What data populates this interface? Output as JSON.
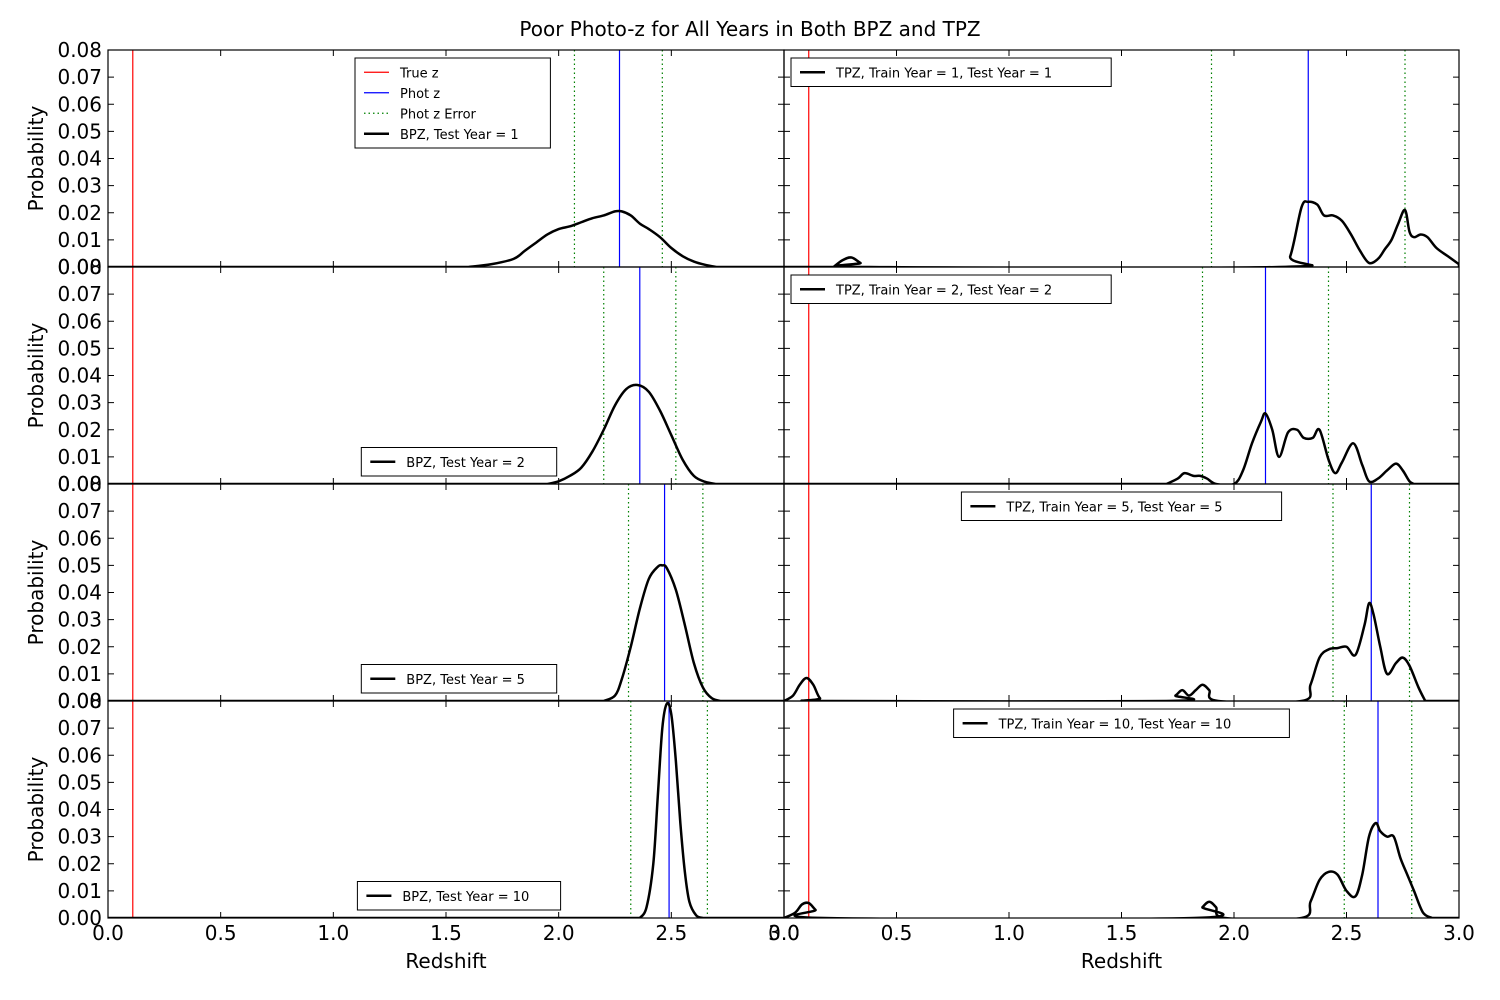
{
  "title": "Poor Photo-z for All Years in Both BPZ and TPZ",
  "colors": {
    "true_z": "#ff0000",
    "phot_z": "#0000ff",
    "phot_z_error": "#008000",
    "pdf": "#000000"
  },
  "chart_data": [
    {
      "type": "line",
      "panel": "left-row-1",
      "xlim": [
        0.0,
        3.0
      ],
      "ylim": [
        0.0,
        0.08
      ],
      "xticks": [
        "0.0",
        "0.5",
        "1.0",
        "1.5",
        "2.0",
        "2.5",
        "3.0"
      ],
      "yticks": [
        "0.00",
        "0.01",
        "0.02",
        "0.03",
        "0.04",
        "0.05",
        "0.06",
        "0.07",
        "0.08"
      ],
      "ylabel": "Probability",
      "xlabel": "",
      "true_z": 0.11,
      "phot_z": 2.27,
      "phot_z_error": [
        2.07,
        2.46
      ],
      "legend_position": "upper-center",
      "legend": [
        "True z",
        "Phot z",
        "Phot z Error",
        "BPZ, Test Year = 1"
      ],
      "series": [
        {
          "name": "BPZ, Test Year = 1",
          "x": [
            1.6,
            1.7,
            1.8,
            1.85,
            1.9,
            1.95,
            2.0,
            2.05,
            2.1,
            2.15,
            2.2,
            2.25,
            2.28,
            2.32,
            2.36,
            2.4,
            2.45,
            2.5,
            2.55,
            2.6,
            2.65,
            2.7
          ],
          "y": [
            0,
            0.001,
            0.003,
            0.006,
            0.009,
            0.012,
            0.014,
            0.015,
            0.0165,
            0.018,
            0.019,
            0.0205,
            0.0205,
            0.019,
            0.016,
            0.014,
            0.011,
            0.007,
            0.004,
            0.002,
            0.0008,
            0
          ]
        }
      ]
    },
    {
      "type": "line",
      "panel": "right-row-1",
      "xlim": [
        0.0,
        3.0
      ],
      "ylim": [
        0.0,
        0.08
      ],
      "xticks": [
        "0.0",
        "0.5",
        "1.0",
        "1.5",
        "2.0",
        "2.5",
        "3.0"
      ],
      "yticks": [],
      "ylabel": "",
      "xlabel": "",
      "true_z": 0.11,
      "phot_z": 2.33,
      "phot_z_error": [
        1.9,
        2.76
      ],
      "legend_position": "upper-left",
      "legend": [
        "TPZ, Train Year = 1, Test Year = 1"
      ],
      "series": [
        {
          "name": "TPZ, Train Year = 1, Test Year = 1",
          "x": [
            0.22,
            0.26,
            0.3,
            0.34,
            0.38,
            2.2,
            2.25,
            2.3,
            2.33,
            2.37,
            2.4,
            2.44,
            2.48,
            2.52,
            2.56,
            2.6,
            2.64,
            2.67,
            2.7,
            2.73,
            2.76,
            2.78,
            2.8,
            2.83,
            2.86,
            2.9,
            2.95,
            3.0
          ],
          "y": [
            0,
            0.0025,
            0.0035,
            0.0015,
            0,
            0,
            0.004,
            0.022,
            0.024,
            0.023,
            0.019,
            0.019,
            0.017,
            0.012,
            0.006,
            0.0015,
            0.003,
            0.0065,
            0.01,
            0.016,
            0.021,
            0.013,
            0.011,
            0.012,
            0.011,
            0.007,
            0.004,
            0.001
          ]
        }
      ]
    },
    {
      "type": "line",
      "panel": "left-row-2",
      "xlim": [
        0.0,
        3.0
      ],
      "ylim": [
        0.0,
        0.08
      ],
      "xticks": [
        "0.0",
        "0.5",
        "1.0",
        "1.5",
        "2.0",
        "2.5",
        "3.0"
      ],
      "yticks": [
        "0.00",
        "0.01",
        "0.02",
        "0.03",
        "0.04",
        "0.05",
        "0.06",
        "0.07",
        "0.08"
      ],
      "ylabel": "Probability",
      "xlabel": "",
      "true_z": 0.11,
      "phot_z": 2.36,
      "phot_z_error": [
        2.2,
        2.52
      ],
      "legend_position": "lower-center",
      "legend": [
        "BPZ, Test Year = 2"
      ],
      "series": [
        {
          "name": "BPZ, Test Year = 2",
          "x": [
            1.95,
            2.0,
            2.05,
            2.1,
            2.15,
            2.2,
            2.25,
            2.3,
            2.35,
            2.4,
            2.45,
            2.5,
            2.55,
            2.6,
            2.65,
            2.7
          ],
          "y": [
            0,
            0.001,
            0.003,
            0.006,
            0.012,
            0.02,
            0.029,
            0.035,
            0.0365,
            0.034,
            0.027,
            0.018,
            0.009,
            0.003,
            0.0008,
            0
          ]
        }
      ]
    },
    {
      "type": "line",
      "panel": "right-row-2",
      "xlim": [
        0.0,
        3.0
      ],
      "ylim": [
        0.0,
        0.08
      ],
      "xticks": [
        "0.0",
        "0.5",
        "1.0",
        "1.5",
        "2.0",
        "2.5",
        "3.0"
      ],
      "yticks": [],
      "ylabel": "",
      "xlabel": "",
      "true_z": 0.11,
      "phot_z": 2.14,
      "phot_z_error": [
        1.86,
        2.42
      ],
      "legend_position": "upper-left",
      "legend": [
        "TPZ, Train Year = 2, Test Year = 2"
      ],
      "series": [
        {
          "name": "TPZ, Train Year = 2, Test Year = 2",
          "x": [
            1.7,
            1.75,
            1.78,
            1.82,
            1.85,
            1.88,
            1.92,
            2.0,
            2.04,
            2.08,
            2.12,
            2.14,
            2.17,
            2.2,
            2.24,
            2.28,
            2.31,
            2.35,
            2.38,
            2.42,
            2.45,
            2.48,
            2.53,
            2.57,
            2.6,
            2.64,
            2.68,
            2.72,
            2.75,
            2.78,
            2.8
          ],
          "y": [
            0,
            0.002,
            0.004,
            0.003,
            0.003,
            0.002,
            0,
            0,
            0.005,
            0.015,
            0.023,
            0.026,
            0.02,
            0.01,
            0.019,
            0.02,
            0.017,
            0.017,
            0.02,
            0.009,
            0.004,
            0.008,
            0.015,
            0.007,
            0.001,
            0.002,
            0.005,
            0.0075,
            0.005,
            0.001,
            0
          ]
        }
      ]
    },
    {
      "type": "line",
      "panel": "left-row-3",
      "xlim": [
        0.0,
        3.0
      ],
      "ylim": [
        0.0,
        0.08
      ],
      "xticks": [
        "0.0",
        "0.5",
        "1.0",
        "1.5",
        "2.0",
        "2.5",
        "3.0"
      ],
      "yticks": [
        "0.00",
        "0.01",
        "0.02",
        "0.03",
        "0.04",
        "0.05",
        "0.06",
        "0.07",
        "0.08"
      ],
      "ylabel": "Probability",
      "xlabel": "",
      "true_z": 0.11,
      "phot_z": 2.47,
      "phot_z_error": [
        2.31,
        2.64
      ],
      "legend_position": "lower-center",
      "legend": [
        "BPZ, Test Year = 5"
      ],
      "series": [
        {
          "name": "BPZ, Test Year = 5",
          "x": [
            2.2,
            2.25,
            2.28,
            2.32,
            2.36,
            2.4,
            2.44,
            2.46,
            2.48,
            2.52,
            2.56,
            2.6,
            2.64,
            2.68,
            2.72
          ],
          "y": [
            0,
            0.002,
            0.008,
            0.02,
            0.034,
            0.045,
            0.0495,
            0.05,
            0.049,
            0.041,
            0.028,
            0.014,
            0.005,
            0.001,
            0
          ]
        }
      ]
    },
    {
      "type": "line",
      "panel": "right-row-3",
      "xlim": [
        0.0,
        3.0
      ],
      "ylim": [
        0.0,
        0.08
      ],
      "xticks": [
        "0.0",
        "0.5",
        "1.0",
        "1.5",
        "2.0",
        "2.5",
        "3.0"
      ],
      "yticks": [],
      "ylabel": "",
      "xlabel": "",
      "true_z": 0.11,
      "phot_z": 2.61,
      "phot_z_error": [
        2.44,
        2.78
      ],
      "legend_position": "upper-center",
      "legend": [
        "TPZ, Train Year = 5, Test Year = 5"
      ],
      "series": [
        {
          "name": "TPZ, Train Year = 5, Test Year = 5",
          "x": [
            0.0,
            0.04,
            0.07,
            0.1,
            0.13,
            0.16,
            0.2,
            1.7,
            1.74,
            1.77,
            1.8,
            1.83,
            1.86,
            1.89,
            1.93,
            2.3,
            2.34,
            2.38,
            2.42,
            2.46,
            2.5,
            2.54,
            2.58,
            2.6,
            2.62,
            2.65,
            2.68,
            2.72,
            2.75,
            2.78,
            2.82,
            2.85
          ],
          "y": [
            0,
            0.002,
            0.006,
            0.0085,
            0.006,
            0.001,
            0,
            0,
            0.002,
            0.004,
            0.002,
            0.004,
            0.006,
            0.004,
            0,
            0,
            0.006,
            0.016,
            0.019,
            0.0195,
            0.02,
            0.017,
            0.028,
            0.036,
            0.032,
            0.02,
            0.01,
            0.014,
            0.016,
            0.013,
            0.005,
            0
          ]
        }
      ]
    },
    {
      "type": "line",
      "panel": "left-row-4",
      "xlim": [
        0.0,
        3.0
      ],
      "ylim": [
        0.0,
        0.08
      ],
      "xticks": [
        "0.0",
        "0.5",
        "1.0",
        "1.5",
        "2.0",
        "2.5",
        "3.0"
      ],
      "yticks": [
        "0.00",
        "0.01",
        "0.02",
        "0.03",
        "0.04",
        "0.05",
        "0.06",
        "0.07",
        "0.08"
      ],
      "ylabel": "Probability",
      "xlabel": "Redshift",
      "true_z": 0.11,
      "phot_z": 2.49,
      "phot_z_error": [
        2.32,
        2.66
      ],
      "legend_position": "lower-center",
      "legend": [
        "BPZ, Test Year = 10"
      ],
      "series": [
        {
          "name": "BPZ, Test Year = 10",
          "x": [
            2.36,
            2.39,
            2.42,
            2.44,
            2.46,
            2.48,
            2.5,
            2.52,
            2.54,
            2.56,
            2.58,
            2.61,
            2.64
          ],
          "y": [
            0,
            0.004,
            0.02,
            0.045,
            0.07,
            0.079,
            0.075,
            0.058,
            0.035,
            0.017,
            0.006,
            0.001,
            0
          ]
        }
      ]
    },
    {
      "type": "line",
      "panel": "right-row-4",
      "xlim": [
        0.0,
        3.0
      ],
      "ylim": [
        0.0,
        0.08
      ],
      "xticks": [
        "0.0",
        "0.5",
        "1.0",
        "1.5",
        "2.0",
        "2.5",
        "3.0"
      ],
      "yticks": [],
      "ylabel": "",
      "xlabel": "Redshift",
      "true_z": 0.11,
      "phot_z": 2.64,
      "phot_z_error": [
        2.49,
        2.79
      ],
      "legend_position": "upper-center",
      "legend": [
        "TPZ, Train Year = 10, Test Year = 10"
      ],
      "series": [
        {
          "name": "TPZ, Train Year = 10, Test Year = 10",
          "x": [
            0.0,
            0.05,
            0.08,
            0.11,
            0.14,
            0.18,
            1.82,
            1.86,
            1.89,
            1.92,
            1.96,
            2.3,
            2.34,
            2.38,
            2.42,
            2.46,
            2.5,
            2.54,
            2.57,
            2.6,
            2.63,
            2.65,
            2.68,
            2.71,
            2.74,
            2.77,
            2.8,
            2.84,
            2.88
          ],
          "y": [
            0,
            0.002,
            0.005,
            0.0055,
            0.003,
            0,
            0,
            0.004,
            0.006,
            0.004,
            0,
            0,
            0.006,
            0.014,
            0.017,
            0.016,
            0.01,
            0.008,
            0.016,
            0.03,
            0.035,
            0.032,
            0.03,
            0.03,
            0.022,
            0.016,
            0.01,
            0.002,
            0
          ]
        }
      ]
    }
  ]
}
